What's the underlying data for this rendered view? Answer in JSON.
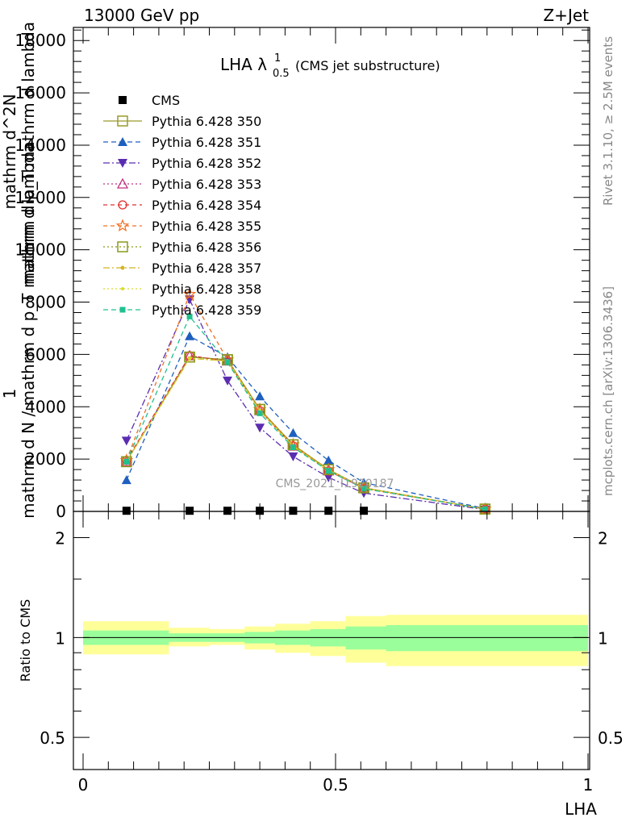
{
  "header": {
    "left": "13000 GeV pp",
    "right": "Z+Jet",
    "side_rivet": "Rivet 3.1.10, ≥ 2.5M events",
    "side_mcplots": "mcplots.cern.ch [arXiv:1306.3436]",
    "watermark": "CMS_2021_I1920187"
  },
  "chart_data": [
    {
      "type": "line",
      "title": "LHA λ",
      "title_sup": "1",
      "title_sub": "0.5",
      "title_suffix": "(CMS jet substructure)",
      "ylabel_lines": [
        "1",
        "mathrm d N / mathrm d p_T mathrm d lambda",
        "mathrm d N",
        "mathrm d p_T mathrm d lambda"
      ],
      "ylabel_top": "mathrm d^2N",
      "ylabel_bottom": "mathrm d N",
      "ylim": [
        0,
        18500
      ],
      "yticks": [
        0,
        2000,
        4000,
        6000,
        8000,
        10000,
        12000,
        14000,
        16000,
        18000
      ],
      "ytick_labels": [
        "0",
        "2000",
        "4000",
        "6000",
        "8000",
        "10000",
        "12000",
        "14000",
        "16000",
        "18000"
      ],
      "xlim": [
        -0.02,
        1.0
      ],
      "x": [
        0.086,
        0.211,
        0.286,
        0.35,
        0.416,
        0.486,
        0.556,
        0.796
      ],
      "series": [
        {
          "name": "CMS",
          "color": "#000000",
          "marker": "square-filled",
          "dash": "none",
          "values": [
            25,
            25,
            25,
            25,
            25,
            25,
            25,
            0
          ]
        },
        {
          "name": "Pythia 6.428 350",
          "color": "#9a9a2a",
          "marker": "square-open",
          "dash": "solid",
          "values": [
            1900,
            5900,
            5800,
            3900,
            2550,
            1600,
            900,
            90
          ]
        },
        {
          "name": "Pythia 6.428 351",
          "color": "#1f5fbf",
          "marker": "triangle-up-filled",
          "dash": "6,4",
          "values": [
            1200,
            6700,
            5900,
            4400,
            3000,
            1950,
            1100,
            110
          ]
        },
        {
          "name": "Pythia 6.428 352",
          "color": "#5a2db0",
          "marker": "triangle-down-filled",
          "dash": "8,3,2,3",
          "values": [
            2700,
            8100,
            5000,
            3200,
            2100,
            1300,
            700,
            70
          ]
        },
        {
          "name": "Pythia 6.428 353",
          "color": "#c03080",
          "marker": "triangle-up-open",
          "dash": "2,3",
          "values": [
            1900,
            5950,
            5750,
            3850,
            2500,
            1550,
            880,
            85
          ]
        },
        {
          "name": "Pythia 6.428 354",
          "color": "#e03030",
          "marker": "circle-open",
          "dash": "5,4",
          "values": [
            1950,
            5950,
            5750,
            3850,
            2500,
            1550,
            880,
            85
          ]
        },
        {
          "name": "Pythia 6.428 355",
          "color": "#f07020",
          "marker": "star-open",
          "dash": "5,4",
          "values": [
            1950,
            8300,
            5800,
            3900,
            2550,
            1600,
            900,
            90
          ]
        },
        {
          "name": "Pythia 6.428 356",
          "color": "#8a9a1a",
          "marker": "square-open",
          "dash": "2,3",
          "values": [
            1900,
            5900,
            5800,
            3900,
            2550,
            1600,
            900,
            90
          ]
        },
        {
          "name": "Pythia 6.428 357",
          "color": "#d4b420",
          "marker": "dot-dash",
          "dash": "8,3,2,3",
          "values": [
            1900,
            5850,
            5750,
            3850,
            2500,
            1580,
            890,
            90
          ]
        },
        {
          "name": "Pythia 6.428 358",
          "color": "#d8dc30",
          "marker": "small-dot",
          "dash": "2,3",
          "values": [
            1900,
            5850,
            5750,
            3850,
            2500,
            1580,
            890,
            90
          ]
        },
        {
          "name": "Pythia 6.428 359",
          "color": "#20c090",
          "marker": "square-small-filled",
          "dash": "6,4",
          "values": [
            1900,
            7450,
            5700,
            3750,
            2450,
            1550,
            870,
            85
          ]
        }
      ]
    },
    {
      "type": "area",
      "ylabel": "Ratio to CMS",
      "xlabel": "LHA",
      "ylim": [
        0.4,
        2.4
      ],
      "log_y": true,
      "yticks": [
        0.5,
        1,
        2
      ],
      "ytick_labels": [
        "0.5",
        "1",
        "2"
      ],
      "xticks": [
        0,
        0.5,
        1
      ],
      "xtick_labels": [
        "0",
        "0.5",
        "1"
      ],
      "bins": [
        0,
        0.17,
        0.25,
        0.32,
        0.38,
        0.45,
        0.52,
        0.6,
        1.0
      ],
      "inner_band": {
        "color": "#9aff9a",
        "lo": [
          0.95,
          0.97,
          0.97,
          0.96,
          0.95,
          0.94,
          0.92,
          0.91
        ],
        "hi": [
          1.05,
          1.03,
          1.03,
          1.04,
          1.05,
          1.06,
          1.08,
          1.09
        ]
      },
      "outer_band": {
        "color": "#ffff9a",
        "lo": [
          0.89,
          0.94,
          0.95,
          0.92,
          0.9,
          0.88,
          0.84,
          0.82
        ],
        "hi": [
          1.12,
          1.07,
          1.06,
          1.08,
          1.1,
          1.12,
          1.16,
          1.17
        ]
      },
      "reference_line": 1
    }
  ]
}
